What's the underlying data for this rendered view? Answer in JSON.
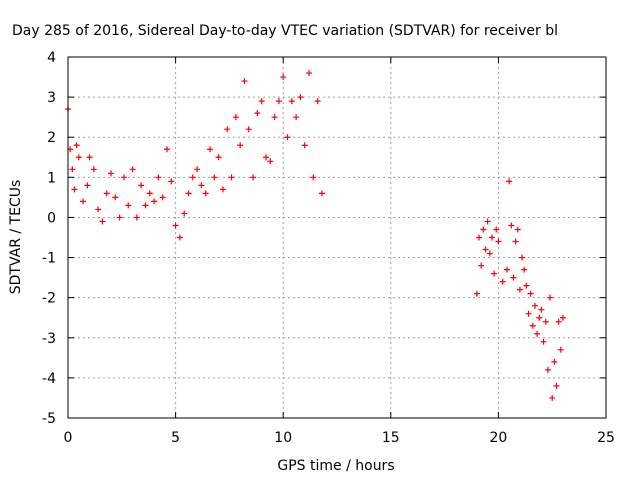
{
  "chart_data": {
    "type": "scatter",
    "title": "Day 285 of 2016, Sidereal Day-to-day VTEC variation (SDTVAR) for receiver bl",
    "xlabel": "GPS time / hours",
    "ylabel": "SDTVAR / TECUs",
    "xlim": [
      0,
      25
    ],
    "ylim": [
      -5,
      4
    ],
    "x_ticks": [
      "0",
      "5",
      "10",
      "15",
      "20",
      "25"
    ],
    "y_ticks": [
      "-5",
      "-4",
      "-3",
      "-2",
      "-1",
      "0",
      "1",
      "2",
      "3",
      "4"
    ],
    "grid": true,
    "marker": "+",
    "color": "#ff0000",
    "series": [
      {
        "x": [
          0.0,
          0.1,
          0.2,
          0.3,
          0.4,
          0.5,
          0.7,
          0.9,
          1.0,
          1.2,
          1.4,
          1.6,
          1.8,
          2.0,
          2.2,
          2.4,
          2.6,
          2.8,
          3.0,
          3.2,
          3.4,
          3.6,
          3.8,
          4.0,
          4.2,
          4.4,
          4.6,
          4.8,
          5.0,
          5.2,
          5.4,
          5.6,
          5.8,
          6.0,
          6.2,
          6.4,
          6.6,
          6.8,
          7.0,
          7.2,
          7.4,
          7.6,
          7.8,
          8.0,
          8.2,
          8.4,
          8.6,
          8.8,
          9.0,
          9.2,
          9.4,
          9.6,
          9.8,
          10.0,
          10.2,
          10.4,
          10.6,
          10.8,
          11.0,
          11.2,
          11.4,
          11.6,
          11.8
        ],
        "y": [
          2.7,
          1.7,
          1.2,
          0.7,
          1.8,
          1.5,
          0.4,
          0.8,
          1.5,
          1.2,
          0.2,
          -0.1,
          0.6,
          1.1,
          0.5,
          0.0,
          1.0,
          0.3,
          1.2,
          0.0,
          0.8,
          0.3,
          0.6,
          0.4,
          1.0,
          0.5,
          1.7,
          0.9,
          -0.2,
          -0.5,
          0.1,
          0.6,
          1.0,
          1.2,
          0.8,
          0.6,
          1.7,
          1.0,
          1.5,
          0.7,
          2.2,
          1.0,
          2.5,
          1.8,
          3.4,
          2.2,
          1.0,
          2.6,
          2.9,
          1.5,
          1.4,
          2.5,
          2.9,
          3.5,
          2.0,
          2.9,
          2.5,
          3.0,
          1.8,
          3.6,
          1.0,
          2.9,
          0.6
        ]
      },
      {
        "x": [
          19.0,
          19.1,
          19.2,
          19.3,
          19.4,
          19.5,
          19.6,
          19.7,
          19.8,
          19.9,
          20.0,
          20.2,
          20.4,
          20.5,
          20.6,
          20.7,
          20.8,
          20.9,
          21.0,
          21.1,
          21.2,
          21.3,
          21.4,
          21.5,
          21.6,
          21.7,
          21.8,
          21.9,
          22.0,
          22.1,
          22.2,
          22.3,
          22.4,
          22.5,
          22.6,
          22.7,
          22.8,
          22.9,
          23.0
        ],
        "y": [
          -1.9,
          -0.5,
          -1.2,
          -0.3,
          -0.8,
          -0.1,
          -0.9,
          -0.5,
          -1.4,
          -0.3,
          -0.6,
          -1.6,
          -1.3,
          0.9,
          -0.2,
          -1.5,
          -0.6,
          -0.3,
          -1.8,
          -1.0,
          -1.3,
          -1.7,
          -2.4,
          -1.9,
          -2.7,
          -2.2,
          -2.9,
          -2.5,
          -2.3,
          -3.1,
          -2.6,
          -3.8,
          -2.0,
          -4.5,
          -3.6,
          -4.2,
          -2.6,
          -3.3,
          -2.5
        ]
      }
    ]
  }
}
